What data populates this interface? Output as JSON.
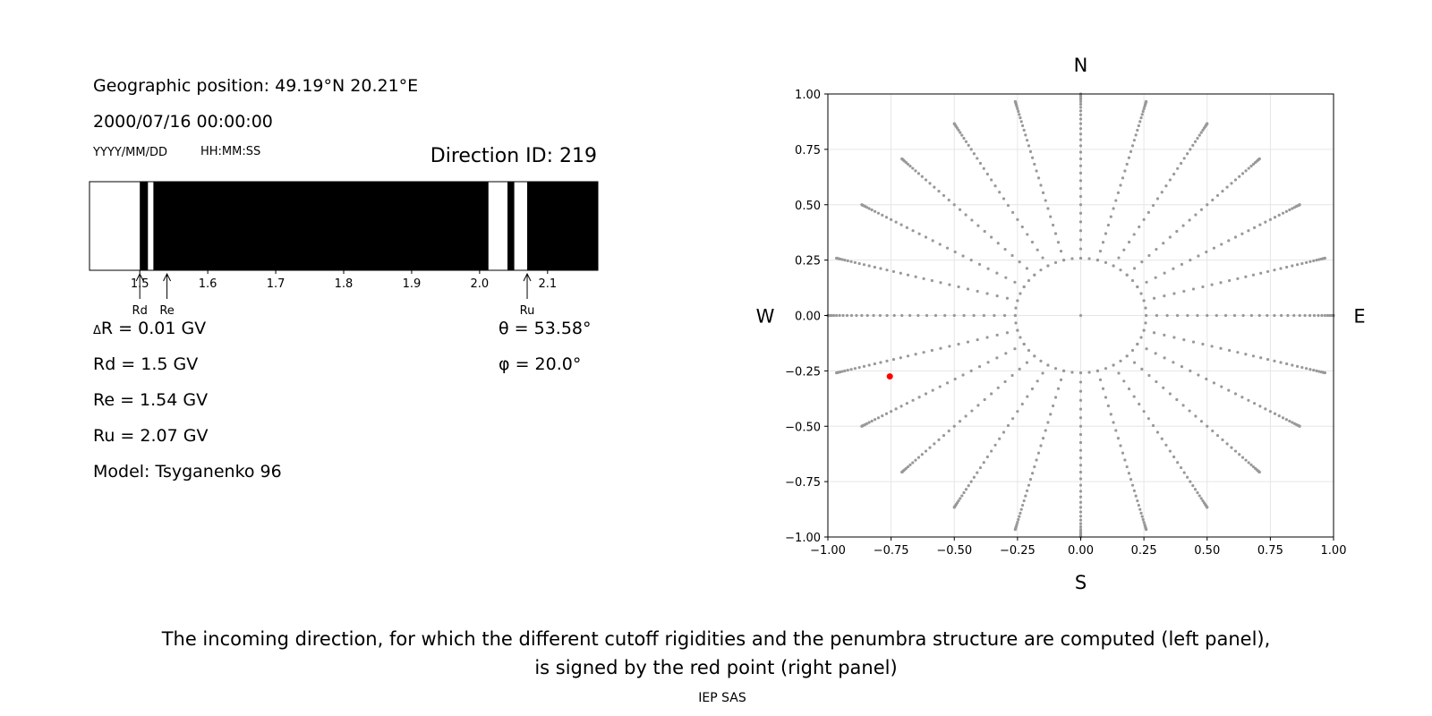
{
  "left_panel": {
    "position_label": "Geographic position: 49.19°N 20.21°E",
    "datetime": "2000/07/16 00:00:00",
    "date_format": "YYYY/MM/DD",
    "time_format": "HH:MM:SS",
    "direction_id": "Direction ID: 219",
    "params": {
      "delta_r": "R = 0.01 GV",
      "delta_symbol": "Δ",
      "rd": "Rd = 1.5 GV",
      "re": "Re = 1.54 GV",
      "ru": "Ru = 2.07 GV",
      "model": "Model: Tsyganenko 96",
      "theta": "θ = 53.58°",
      "phi": "φ = 20.0°"
    }
  },
  "chart_data": [
    {
      "type": "penumbra",
      "xlim": [
        1.426,
        2.174
      ],
      "xticks": [
        1.5,
        1.6,
        1.7,
        1.8,
        1.9,
        2.0,
        2.1
      ],
      "xtick_labels": [
        "1.5",
        "1.6",
        "1.7",
        "1.8",
        "1.9",
        "2.0",
        "2.1"
      ],
      "allowed_intervals": [
        [
          1.426,
          1.5
        ],
        [
          1.512,
          1.52
        ],
        [
          2.013,
          2.041
        ],
        [
          2.051,
          2.07
        ]
      ],
      "markers": [
        {
          "label": "Rd",
          "value": 1.5
        },
        {
          "label": "Re",
          "value": 1.54
        },
        {
          "label": "Ru",
          "value": 2.07
        }
      ],
      "colors": {
        "allowed": "#ffffff",
        "forbidden": "#000000"
      }
    },
    {
      "type": "scatter",
      "xlim": [
        -1.0,
        1.0
      ],
      "ylim": [
        -1.0,
        1.0
      ],
      "xticks": [
        -1.0,
        -0.75,
        -0.5,
        -0.25,
        0.0,
        0.25,
        0.5,
        0.75,
        1.0
      ],
      "xtick_labels": [
        "−1.00",
        "−0.75",
        "−0.50",
        "−0.25",
        "0.00",
        "0.25",
        "0.50",
        "0.75",
        "1.00"
      ],
      "yticks": [
        1.0,
        0.75,
        0.5,
        0.25,
        0.0,
        -0.25,
        -0.5,
        -0.75,
        -1.0
      ],
      "ytick_labels": [
        "1.00",
        "0.75",
        "0.50",
        "0.25",
        "0.00",
        "−0.25",
        "−0.50",
        "−0.75",
        "−1.00"
      ],
      "grid": true,
      "compass": {
        "north": "N",
        "south": "S",
        "west": "W",
        "east": "E"
      },
      "directions": {
        "zenith_angles_deg": [
          0,
          15,
          30,
          45,
          60,
          75,
          90
        ],
        "azimuth_step_deg": 15,
        "color": "#999999"
      },
      "selected_point": {
        "x": -0.755,
        "y": -0.275,
        "color": "#ff0000"
      }
    }
  ],
  "caption": {
    "line1": "The incoming direction, for which the different cutoff rigidities and the penumbra structure are computed (left panel),",
    "line2": "is signed by the red point (right panel)"
  },
  "footer": "IEP SAS"
}
